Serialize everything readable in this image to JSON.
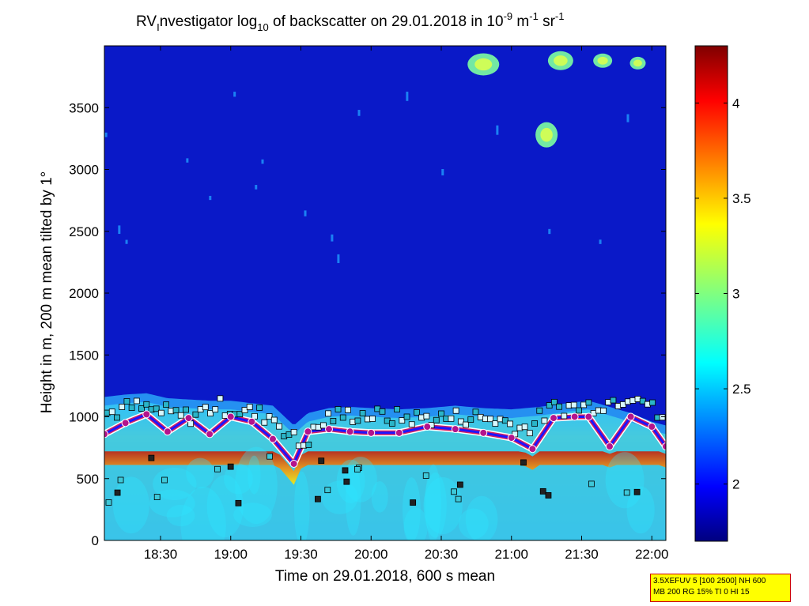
{
  "chart_data": {
    "type": "heatmap",
    "title_parts": {
      "a": "RV",
      "a_sub": "I",
      "b": "nvestigator log",
      "b_sub": "10",
      "c": " of backscatter on 29.01.2018 in 10",
      "c_sup": "-9",
      "d": " m",
      "d_sup": "-1",
      "e": " sr",
      "e_sup": "-1"
    },
    "xlabel": "Time on 29.01.2018, 600 s mean",
    "ylabel": "Height in m, 200 m mean tilted by 1°",
    "x_ticks": [
      "18:30",
      "19:00",
      "19:30",
      "20:00",
      "20:30",
      "21:00",
      "21:30",
      "22:00"
    ],
    "y_ticks": [
      "0",
      "500",
      "1000",
      "1500",
      "2000",
      "2500",
      "3000",
      "3500"
    ],
    "colorbar_ticks": [
      "2",
      "2.5",
      "3",
      "3.5",
      "4"
    ],
    "xlim_hours": [
      18.1,
      22.1
    ],
    "ylim": [
      0,
      4000
    ],
    "clim": [
      1.7,
      4.3
    ],
    "colormap": "jet",
    "boundary_layer_top_m": {
      "time_h": [
        18.1,
        18.25,
        18.4,
        18.55,
        18.7,
        18.85,
        19.0,
        19.15,
        19.3,
        19.45,
        19.55,
        19.7,
        19.85,
        20.0,
        20.2,
        20.4,
        20.6,
        20.8,
        21.0,
        21.2,
        21.4,
        21.55,
        21.7,
        21.85,
        22.0,
        22.1
      ],
      "height_m": [
        1130,
        1150,
        1160,
        1120,
        1110,
        1100,
        1100,
        1080,
        1060,
        900,
        1000,
        1040,
        1050,
        1040,
        1030,
        1040,
        1060,
        1040,
        1030,
        1050,
        1080,
        1100,
        1050,
        1000,
        930,
        900
      ]
    },
    "mixing_layer_m": {
      "time_h": [
        18.1,
        18.25,
        18.4,
        18.55,
        18.7,
        18.85,
        19.0,
        19.15,
        19.3,
        19.45,
        19.55,
        19.7,
        19.85,
        20.0,
        20.2,
        20.4,
        20.6,
        20.8,
        21.0,
        21.15,
        21.3,
        21.45,
        21.55,
        21.7,
        21.85,
        22.0,
        22.1
      ],
      "height_m": [
        860,
        950,
        1020,
        880,
        990,
        860,
        1000,
        960,
        820,
        620,
        880,
        900,
        880,
        870,
        870,
        920,
        900,
        870,
        830,
        740,
        990,
        1000,
        1000,
        760,
        1000,
        920,
        760
      ]
    },
    "cloud_tops_m": {
      "time_h": [
        18.1,
        18.3,
        18.5,
        18.7,
        18.9,
        19.1,
        19.3,
        19.5,
        19.7,
        19.9,
        20.1,
        20.3,
        20.5,
        20.7,
        20.9,
        21.1,
        21.3,
        21.5,
        21.7,
        21.9,
        22.05
      ],
      "height_m": [
        1020,
        1080,
        1040,
        1000,
        1090,
        1040,
        1000,
        760,
        1000,
        1020,
        1000,
        990,
        990,
        1000,
        980,
        900,
        1070,
        1080,
        1120,
        1200,
        1000
      ]
    }
  },
  "info_box": {
    "line1": "3.5XEFUV 5 [100 2500] NH 600",
    "line2": "MB 200 RG 15% TI 0 HI 15",
    "border_color": "#cc0000",
    "background": "#ffff00"
  }
}
